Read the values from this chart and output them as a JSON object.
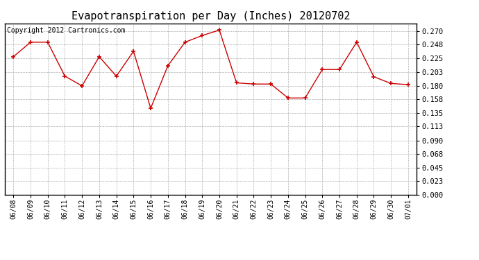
{
  "title": "Evapotranspiration per Day (Inches) 20120702",
  "copyright": "Copyright 2012 Cartronics.com",
  "dates": [
    "06/08",
    "06/09",
    "06/10",
    "06/11",
    "06/12",
    "06/13",
    "06/14",
    "06/15",
    "06/16",
    "06/17",
    "06/18",
    "06/19",
    "06/20",
    "06/21",
    "06/22",
    "06/23",
    "06/24",
    "06/25",
    "06/26",
    "06/27",
    "06/28",
    "06/29",
    "06/30",
    "07/01"
  ],
  "values": [
    0.228,
    0.252,
    0.252,
    0.196,
    0.18,
    0.228,
    0.196,
    0.237,
    0.143,
    0.213,
    0.252,
    0.263,
    0.272,
    0.185,
    0.183,
    0.183,
    0.16,
    0.16,
    0.207,
    0.207,
    0.252,
    0.195,
    0.184,
    0.182
  ],
  "line_color": "#cc0000",
  "marker_color": "#cc0000",
  "bg_color": "#ffffff",
  "plot_bg_color": "#ffffff",
  "grid_color": "#b0b0b0",
  "title_fontsize": 11,
  "copyright_fontsize": 7,
  "ytick_values": [
    0.0,
    0.023,
    0.045,
    0.068,
    0.09,
    0.113,
    0.135,
    0.158,
    0.18,
    0.203,
    0.225,
    0.248,
    0.27
  ],
  "ylim": [
    0.0,
    0.283
  ]
}
